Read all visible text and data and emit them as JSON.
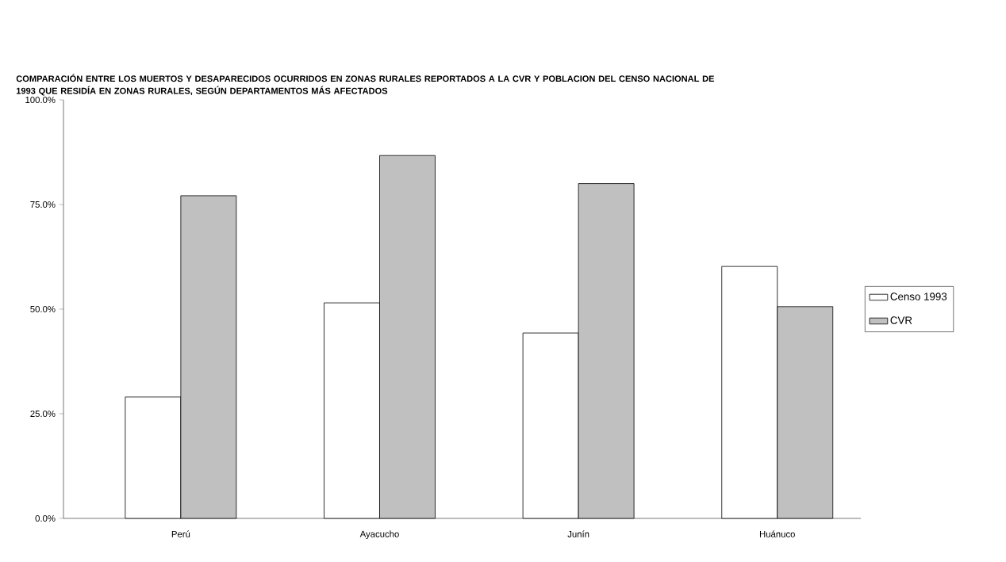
{
  "chart_data": {
    "type": "bar",
    "title": "COMPARACIÓN ENTRE LOS MUERTOS Y DESAPARECIDOS OCURRIDOS EN ZONAS RURALES REPORTADOS A LA CVR Y POBLACION DEL CENSO NACIONAL DE 1993 QUE RESIDÍA EN ZONAS RURALES, SEGÚN DEPARTAMENTOS MÁS AFECTADOS",
    "categories": [
      "Perú",
      "Ayacucho",
      "Junín",
      "Huánuco"
    ],
    "series": [
      {
        "name": "Censo 1993",
        "color": "#ffffff",
        "values": [
          29.0,
          51.5,
          44.3,
          60.2
        ]
      },
      {
        "name": "CVR",
        "color": "#c0c0c0",
        "values": [
          77.1,
          86.7,
          80.0,
          50.6
        ]
      }
    ],
    "ylim": [
      0,
      100
    ],
    "yticks": [
      {
        "value": 0,
        "label": "0.0%"
      },
      {
        "value": 25,
        "label": "25.0%"
      },
      {
        "value": 50,
        "label": "50.0%"
      },
      {
        "value": 75,
        "label": "75.0%"
      },
      {
        "value": 100,
        "label": "100.0%"
      }
    ],
    "legend": "right"
  }
}
